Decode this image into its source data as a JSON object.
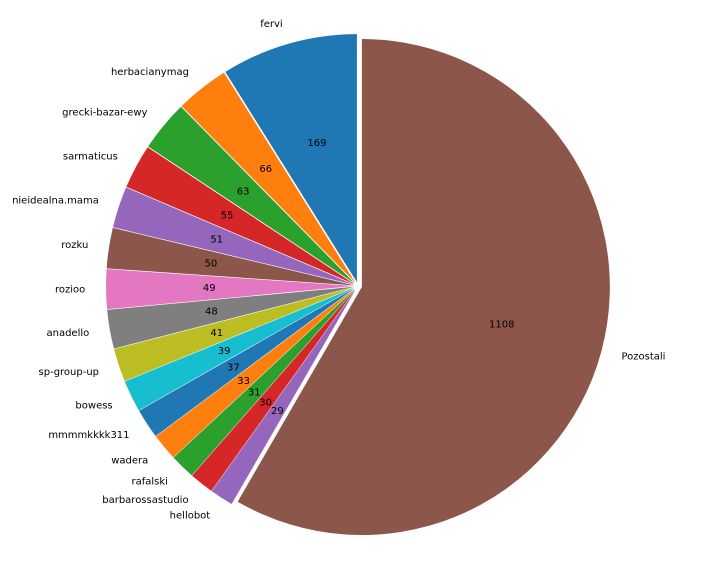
{
  "chart_data": {
    "type": "pie",
    "title": "",
    "start_angle_deg": 90,
    "direction": "counterclockwise",
    "explode_all": true,
    "slices": [
      {
        "label": "fervi",
        "value": 169,
        "value_label": "169",
        "color": "#1f77b4"
      },
      {
        "label": "herbacianymag",
        "value": 66,
        "value_label": "66",
        "color": "#ff7f0e"
      },
      {
        "label": "grecki-bazar-ewy",
        "value": 63,
        "value_label": "63",
        "color": "#2ca02c"
      },
      {
        "label": "sarmaticus",
        "value": 55,
        "value_label": "55",
        "color": "#d62728"
      },
      {
        "label": "nieidealna.mama",
        "value": 51,
        "value_label": "51",
        "color": "#9467bd"
      },
      {
        "label": "rozku",
        "value": 50,
        "value_label": "50",
        "color": "#8c564b"
      },
      {
        "label": "rozioo",
        "value": 49,
        "value_label": "49",
        "color": "#e377c2"
      },
      {
        "label": "anadello",
        "value": 48,
        "value_label": "48",
        "color": "#7f7f7f"
      },
      {
        "label": "sp-group-up",
        "value": 41,
        "value_label": "41",
        "color": "#bcbd22"
      },
      {
        "label": "bowess",
        "value": 39,
        "value_label": "39",
        "color": "#17becf"
      },
      {
        "label": "mmmmkkkk311",
        "value": 37,
        "value_label": "37",
        "color": "#1f77b4"
      },
      {
        "label": "wadera",
        "value": 33,
        "value_label": "33",
        "color": "#ff7f0e"
      },
      {
        "label": "rafalski",
        "value": 31,
        "value_label": "31",
        "color": "#2ca02c"
      },
      {
        "label": "barbarossastudio",
        "value": 30,
        "value_label": "30",
        "color": "#d62728"
      },
      {
        "label": "hellobot",
        "value": 29,
        "value_label": "29",
        "color": "#9467bd"
      },
      {
        "label": "Pozostali",
        "value": 1108,
        "value_label": "1108",
        "color": "#8c564b"
      }
    ]
  }
}
